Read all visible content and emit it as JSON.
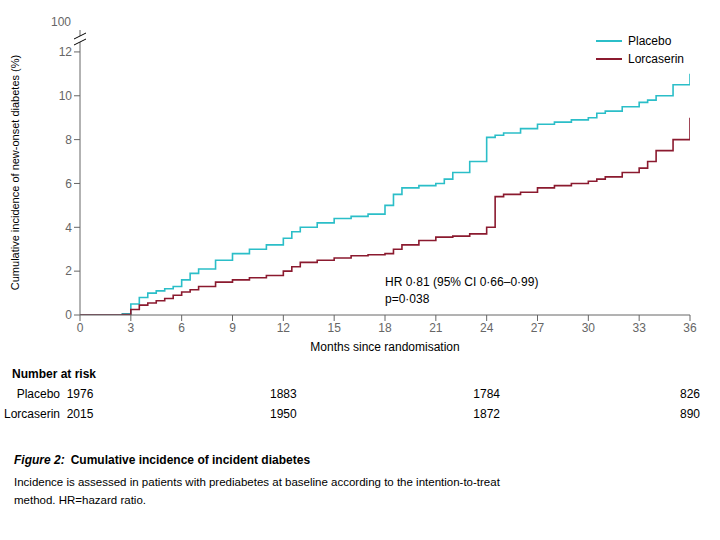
{
  "chart_data": {
    "type": "line",
    "line_style": "step",
    "xlabel": "Months since randomisation",
    "ylabel": "Cumulative incidence of new-onset diabetes (%)",
    "xlim": [
      0,
      36
    ],
    "ylim": [
      0,
      13
    ],
    "xticks": [
      0,
      3,
      6,
      9,
      12,
      15,
      18,
      21,
      24,
      27,
      30,
      33,
      36
    ],
    "yticks": [
      0,
      2,
      4,
      6,
      8,
      10,
      12
    ],
    "grid": false,
    "legend": "upper right",
    "y_break_label": "100",
    "annotations": [
      {
        "text": "HR 0·81 (95% CI 0·66–0·99)\np=0·038"
      }
    ],
    "series": [
      {
        "name": "Placebo",
        "color": "#2BBEC8",
        "x": [
          0,
          1,
          2,
          2.5,
          3,
          3.5,
          4,
          4.5,
          5,
          5.5,
          6,
          6.5,
          7,
          8,
          9,
          10,
          11,
          12,
          12.5,
          13,
          14,
          15,
          16,
          17,
          18,
          18.5,
          19,
          20,
          21,
          21.5,
          22,
          23,
          24,
          24.5,
          25,
          26,
          27,
          28,
          29,
          30,
          30.5,
          31,
          32,
          33,
          33.5,
          34,
          35,
          36
        ],
        "values": [
          0,
          0,
          0,
          0.05,
          0.5,
          0.8,
          1.0,
          1.1,
          1.2,
          1.3,
          1.6,
          1.9,
          2.1,
          2.5,
          2.8,
          3.0,
          3.2,
          3.5,
          3.8,
          4.0,
          4.2,
          4.4,
          4.5,
          4.6,
          5.0,
          5.5,
          5.8,
          5.9,
          6.0,
          6.2,
          6.5,
          7.0,
          8.1,
          8.2,
          8.3,
          8.5,
          8.7,
          8.8,
          8.9,
          9.0,
          9.2,
          9.3,
          9.5,
          9.7,
          9.8,
          10.0,
          10.5,
          11.0
        ]
      },
      {
        "name": "Lorcaserin",
        "color": "#8B1A2F",
        "x": [
          0,
          1,
          2,
          2.5,
          3,
          3.5,
          4,
          4.5,
          5,
          5.5,
          6,
          6.5,
          7,
          8,
          9,
          10,
          11,
          12,
          12.5,
          13,
          14,
          15,
          16,
          17,
          18,
          18.5,
          19,
          20,
          21,
          22,
          23,
          24,
          24.5,
          25,
          26,
          27,
          28,
          29,
          30,
          30.5,
          31,
          32,
          33,
          33.5,
          34,
          35,
          36
        ],
        "values": [
          0,
          0,
          0,
          0.02,
          0.25,
          0.45,
          0.55,
          0.65,
          0.75,
          0.9,
          1.05,
          1.15,
          1.3,
          1.5,
          1.6,
          1.7,
          1.8,
          2.0,
          2.2,
          2.4,
          2.5,
          2.6,
          2.7,
          2.75,
          2.8,
          3.0,
          3.2,
          3.4,
          3.55,
          3.6,
          3.7,
          4.0,
          5.4,
          5.5,
          5.6,
          5.8,
          5.9,
          6.0,
          6.1,
          6.2,
          6.3,
          6.5,
          6.7,
          7.0,
          7.5,
          8.0,
          9.0
        ]
      }
    ],
    "risk_table": {
      "title": "Number at risk",
      "x": [
        0,
        12,
        24,
        36
      ],
      "rows": [
        {
          "name": "Placebo",
          "values": [
            1976,
            1883,
            1784,
            826
          ]
        },
        {
          "name": "Lorcaserin",
          "values": [
            2015,
            1950,
            1872,
            890
          ]
        }
      ]
    },
    "caption": {
      "label": "Figure 2:",
      "title": "Cumulative incidence of incident diabetes",
      "text": [
        "Incidence is assessed in patients with prediabetes at baseline according to the intention-to-treat",
        "method. HR=hazard ratio."
      ]
    }
  }
}
